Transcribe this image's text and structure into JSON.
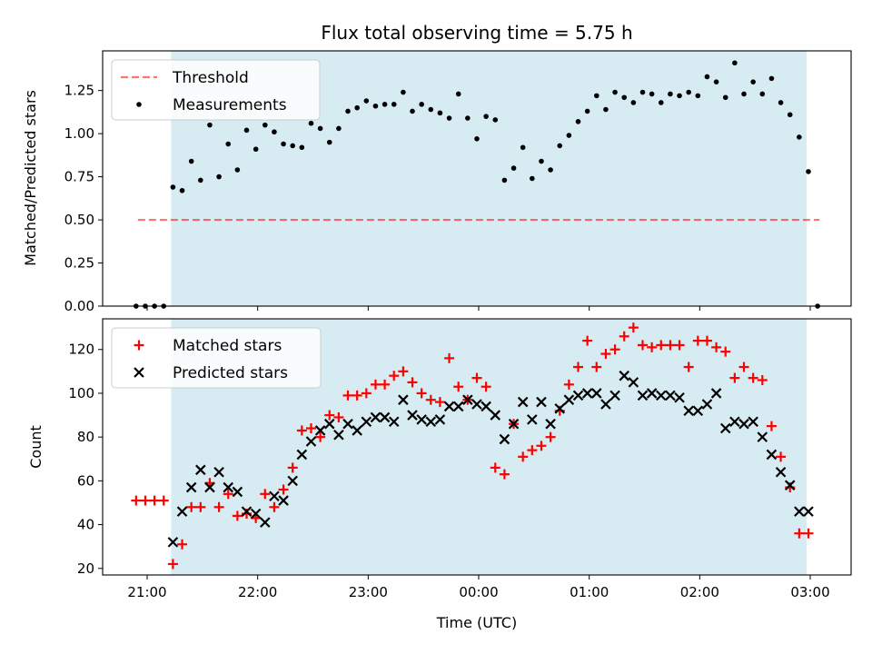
{
  "title": "Flux total observing time = 5.75 h",
  "colors": {
    "shade": "#add8e6",
    "threshold": "#ff0000",
    "measurements": "#000000",
    "matched": "#ff0000",
    "predicted": "#000000"
  },
  "chart_data": [
    {
      "type": "scatter",
      "ylabel": "Matched/Predicted stars",
      "ylim": [
        0,
        1.48
      ],
      "yticks": [
        "0.00",
        "0.25",
        "0.50",
        "0.75",
        "1.00",
        "1.25"
      ],
      "legend": {
        "placement": "upper-left",
        "entries": [
          "Threshold",
          "Measurements"
        ]
      },
      "threshold": {
        "name": "Threshold",
        "y": 0.5,
        "x_start": "20:55",
        "x_end": "03:05"
      },
      "observing_window": {
        "start": "21:13",
        "end": "02:58"
      },
      "series": [
        {
          "name": "Measurements",
          "x": [
            "20:54",
            "20:59",
            "21:04",
            "21:09",
            "21:14",
            "21:19",
            "21:24",
            "21:29",
            "21:34",
            "21:39",
            "21:44",
            "21:49",
            "21:54",
            "21:59",
            "22:04",
            "22:09",
            "22:14",
            "22:19",
            "22:24",
            "22:29",
            "22:34",
            "22:39",
            "22:44",
            "22:49",
            "22:54",
            "22:59",
            "23:04",
            "23:09",
            "23:14",
            "23:19",
            "23:24",
            "23:29",
            "23:34",
            "23:39",
            "23:44",
            "23:49",
            "23:54",
            "23:59",
            "00:04",
            "00:09",
            "00:14",
            "00:19",
            "00:24",
            "00:29",
            "00:34",
            "00:39",
            "00:44",
            "00:49",
            "00:54",
            "00:59",
            "01:04",
            "01:09",
            "01:14",
            "01:19",
            "01:24",
            "01:29",
            "01:34",
            "01:39",
            "01:44",
            "01:49",
            "01:54",
            "01:59",
            "02:04",
            "02:09",
            "02:14",
            "02:19",
            "02:24",
            "02:29",
            "02:34",
            "02:39",
            "02:44",
            "02:49",
            "02:54",
            "02:59",
            "03:04"
          ],
          "y": [
            0.0,
            0.0,
            0.0,
            0.0,
            0.69,
            0.67,
            0.84,
            0.73,
            1.05,
            0.75,
            0.94,
            0.79,
            1.02,
            0.91,
            1.05,
            1.01,
            0.94,
            0.93,
            0.92,
            1.06,
            1.03,
            0.95,
            1.03,
            1.13,
            1.15,
            1.19,
            1.16,
            1.17,
            1.17,
            1.24,
            1.13,
            1.17,
            1.14,
            1.12,
            1.09,
            1.23,
            1.09,
            0.97,
            1.1,
            1.08,
            0.73,
            0.8,
            0.92,
            0.74,
            0.84,
            0.79,
            0.93,
            0.99,
            1.07,
            1.13,
            1.22,
            1.14,
            1.24,
            1.21,
            1.18,
            1.24,
            1.23,
            1.18,
            1.23,
            1.22,
            1.24,
            1.22,
            1.33,
            1.3,
            1.21,
            1.41,
            1.23,
            1.3,
            1.23,
            1.32,
            1.18,
            1.11,
            0.98,
            0.78,
            0.0
          ]
        }
      ]
    },
    {
      "type": "scatter",
      "xlabel": "Time (UTC)",
      "ylabel": "Count",
      "ylim": [
        17,
        134
      ],
      "yticks": [
        "20",
        "40",
        "60",
        "80",
        "100",
        "120"
      ],
      "xticks": [
        "21:00",
        "22:00",
        "23:00",
        "00:00",
        "01:00",
        "02:00",
        "03:00"
      ],
      "legend": {
        "placement": "upper-left",
        "entries": [
          "Matched stars",
          "Predicted stars"
        ]
      },
      "series": [
        {
          "name": "Matched stars",
          "x": [
            "20:54",
            "20:59",
            "21:04",
            "21:09",
            "21:14",
            "21:19",
            "21:24",
            "21:29",
            "21:34",
            "21:39",
            "21:44",
            "21:49",
            "21:54",
            "21:59",
            "22:04",
            "22:09",
            "22:14",
            "22:19",
            "22:24",
            "22:29",
            "22:34",
            "22:39",
            "22:44",
            "22:49",
            "22:54",
            "22:59",
            "23:04",
            "23:09",
            "23:14",
            "23:19",
            "23:24",
            "23:29",
            "23:34",
            "23:39",
            "23:44",
            "23:49",
            "23:54",
            "23:59",
            "00:04",
            "00:09",
            "00:14",
            "00:19",
            "00:24",
            "00:29",
            "00:34",
            "00:39",
            "00:44",
            "00:49",
            "00:54",
            "00:59",
            "01:04",
            "01:09",
            "01:14",
            "01:19",
            "01:24",
            "01:29",
            "01:34",
            "01:39",
            "01:44",
            "01:49",
            "01:54",
            "01:59",
            "02:04",
            "02:09",
            "02:14",
            "02:19",
            "02:24",
            "02:29",
            "02:34",
            "02:39",
            "02:44",
            "02:49",
            "02:54",
            "02:59",
            "03:04"
          ],
          "y": [
            51,
            51,
            51,
            51,
            22,
            31,
            48,
            48,
            59,
            48,
            54,
            44,
            45,
            43,
            54,
            48,
            56,
            66,
            83,
            84,
            80,
            90,
            89,
            99,
            99,
            100,
            104,
            104,
            108,
            110,
            105,
            100,
            97,
            96,
            116,
            103,
            97,
            107,
            103,
            66,
            63,
            86,
            71,
            74,
            76,
            80,
            92,
            104,
            112,
            124,
            112,
            118,
            120,
            126,
            130,
            122,
            121,
            122,
            122,
            122,
            112,
            124,
            124,
            121,
            119,
            107,
            112,
            107,
            106,
            85,
            71,
            57,
            36,
            36,
            null
          ]
        },
        {
          "name": "Predicted stars",
          "x": [
            "21:14",
            "21:19",
            "21:24",
            "21:29",
            "21:34",
            "21:39",
            "21:44",
            "21:49",
            "21:54",
            "21:59",
            "22:04",
            "22:09",
            "22:14",
            "22:19",
            "22:24",
            "22:29",
            "22:34",
            "22:39",
            "22:44",
            "22:49",
            "22:54",
            "22:59",
            "23:04",
            "23:09",
            "23:14",
            "23:19",
            "23:24",
            "23:29",
            "23:34",
            "23:39",
            "23:44",
            "23:49",
            "23:54",
            "23:59",
            "00:04",
            "00:09",
            "00:14",
            "00:19",
            "00:24",
            "00:29",
            "00:34",
            "00:39",
            "00:44",
            "00:49",
            "00:54",
            "00:59",
            "01:04",
            "01:09",
            "01:14",
            "01:19",
            "01:24",
            "01:29",
            "01:34",
            "01:39",
            "01:44",
            "01:49",
            "01:54",
            "01:59",
            "02:04",
            "02:09",
            "02:14",
            "02:19",
            "02:24",
            "02:29",
            "02:34",
            "02:39",
            "02:44",
            "02:49",
            "02:54",
            "02:59"
          ],
          "y": [
            32,
            46,
            57,
            65,
            57,
            64,
            57,
            55,
            46,
            45,
            41,
            53,
            51,
            60,
            72,
            78,
            83,
            86,
            81,
            86,
            83,
            87,
            89,
            89,
            87,
            97,
            90,
            88,
            87,
            88,
            94,
            94,
            97,
            95,
            94,
            90,
            79,
            86,
            96,
            88,
            96,
            86,
            93,
            97,
            99,
            100,
            100,
            95,
            99,
            108,
            105,
            99,
            100,
            99,
            99,
            98,
            92,
            92,
            95,
            100,
            84,
            87,
            86,
            87,
            80,
            72,
            64,
            58,
            46,
            46
          ]
        }
      ]
    }
  ]
}
